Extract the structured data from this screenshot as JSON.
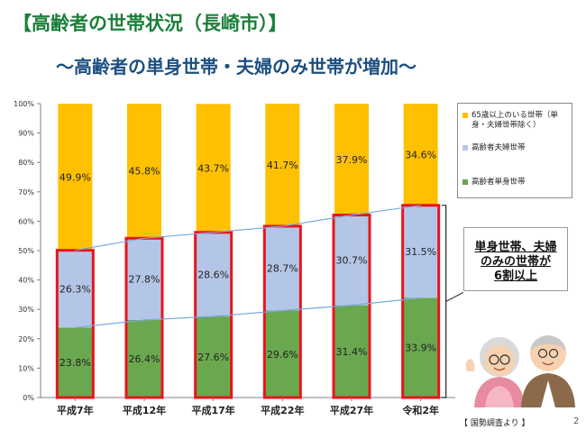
{
  "header": {
    "title": "【高齢者の世帯状況（長崎市）】",
    "subtitle": "〜高齢者の単身世帯・夫婦のみ世帯が増加〜"
  },
  "chart_data": {
    "type": "bar",
    "stacked": true,
    "categories": [
      "平成7年",
      "平成12年",
      "平成17年",
      "平成22年",
      "平成27年",
      "令和2年"
    ],
    "series": [
      {
        "name": "高齢者単身世帯",
        "values": [
          23.8,
          26.4,
          27.6,
          29.6,
          31.4,
          33.9
        ],
        "labels": [
          "23.8%",
          "26.4%",
          "27.6%",
          "29.6%",
          "31.4%",
          "33.9%"
        ],
        "color": "#6aa84f"
      },
      {
        "name": "高齢者夫婦世帯",
        "values": [
          26.3,
          27.8,
          28.6,
          28.7,
          30.7,
          31.5
        ],
        "labels": [
          "26.3%",
          "27.8%",
          "28.6%",
          "28.7%",
          "30.7%",
          "31.5%"
        ],
        "color": "#b4c6e7"
      },
      {
        "name": "65歳以上のいる世帯（単身・夫婦世帯除く）",
        "values": [
          49.9,
          45.8,
          43.7,
          41.7,
          37.9,
          34.6
        ],
        "labels": [
          "49.9%",
          "45.8%",
          "43.7%",
          "41.7%",
          "37.9%",
          "34.6%"
        ],
        "color": "#ffc000"
      }
    ],
    "yticks": [
      "0%",
      "10%",
      "20%",
      "30%",
      "40%",
      "50%",
      "60%",
      "70%",
      "80%",
      "90%",
      "100%"
    ],
    "ylim": [
      0,
      100
    ],
    "highlight_color": "#e8141c",
    "trend_line_color": "#7aa8d8",
    "legend_position": "right"
  },
  "legend": {
    "items": [
      "65歳以上のいる世帯（単身・夫婦世帯除く）",
      "高齢者夫婦世帯",
      "高齢者単身世帯"
    ],
    "colors": [
      "#ffc000",
      "#b4c6e7",
      "#6aa84f"
    ]
  },
  "callout": {
    "line1": "単身世帯、夫婦",
    "line2": "のみの世帯が",
    "line3": "6割以上"
  },
  "footer": {
    "source": "【 国勢調査より 】",
    "page": "2"
  }
}
